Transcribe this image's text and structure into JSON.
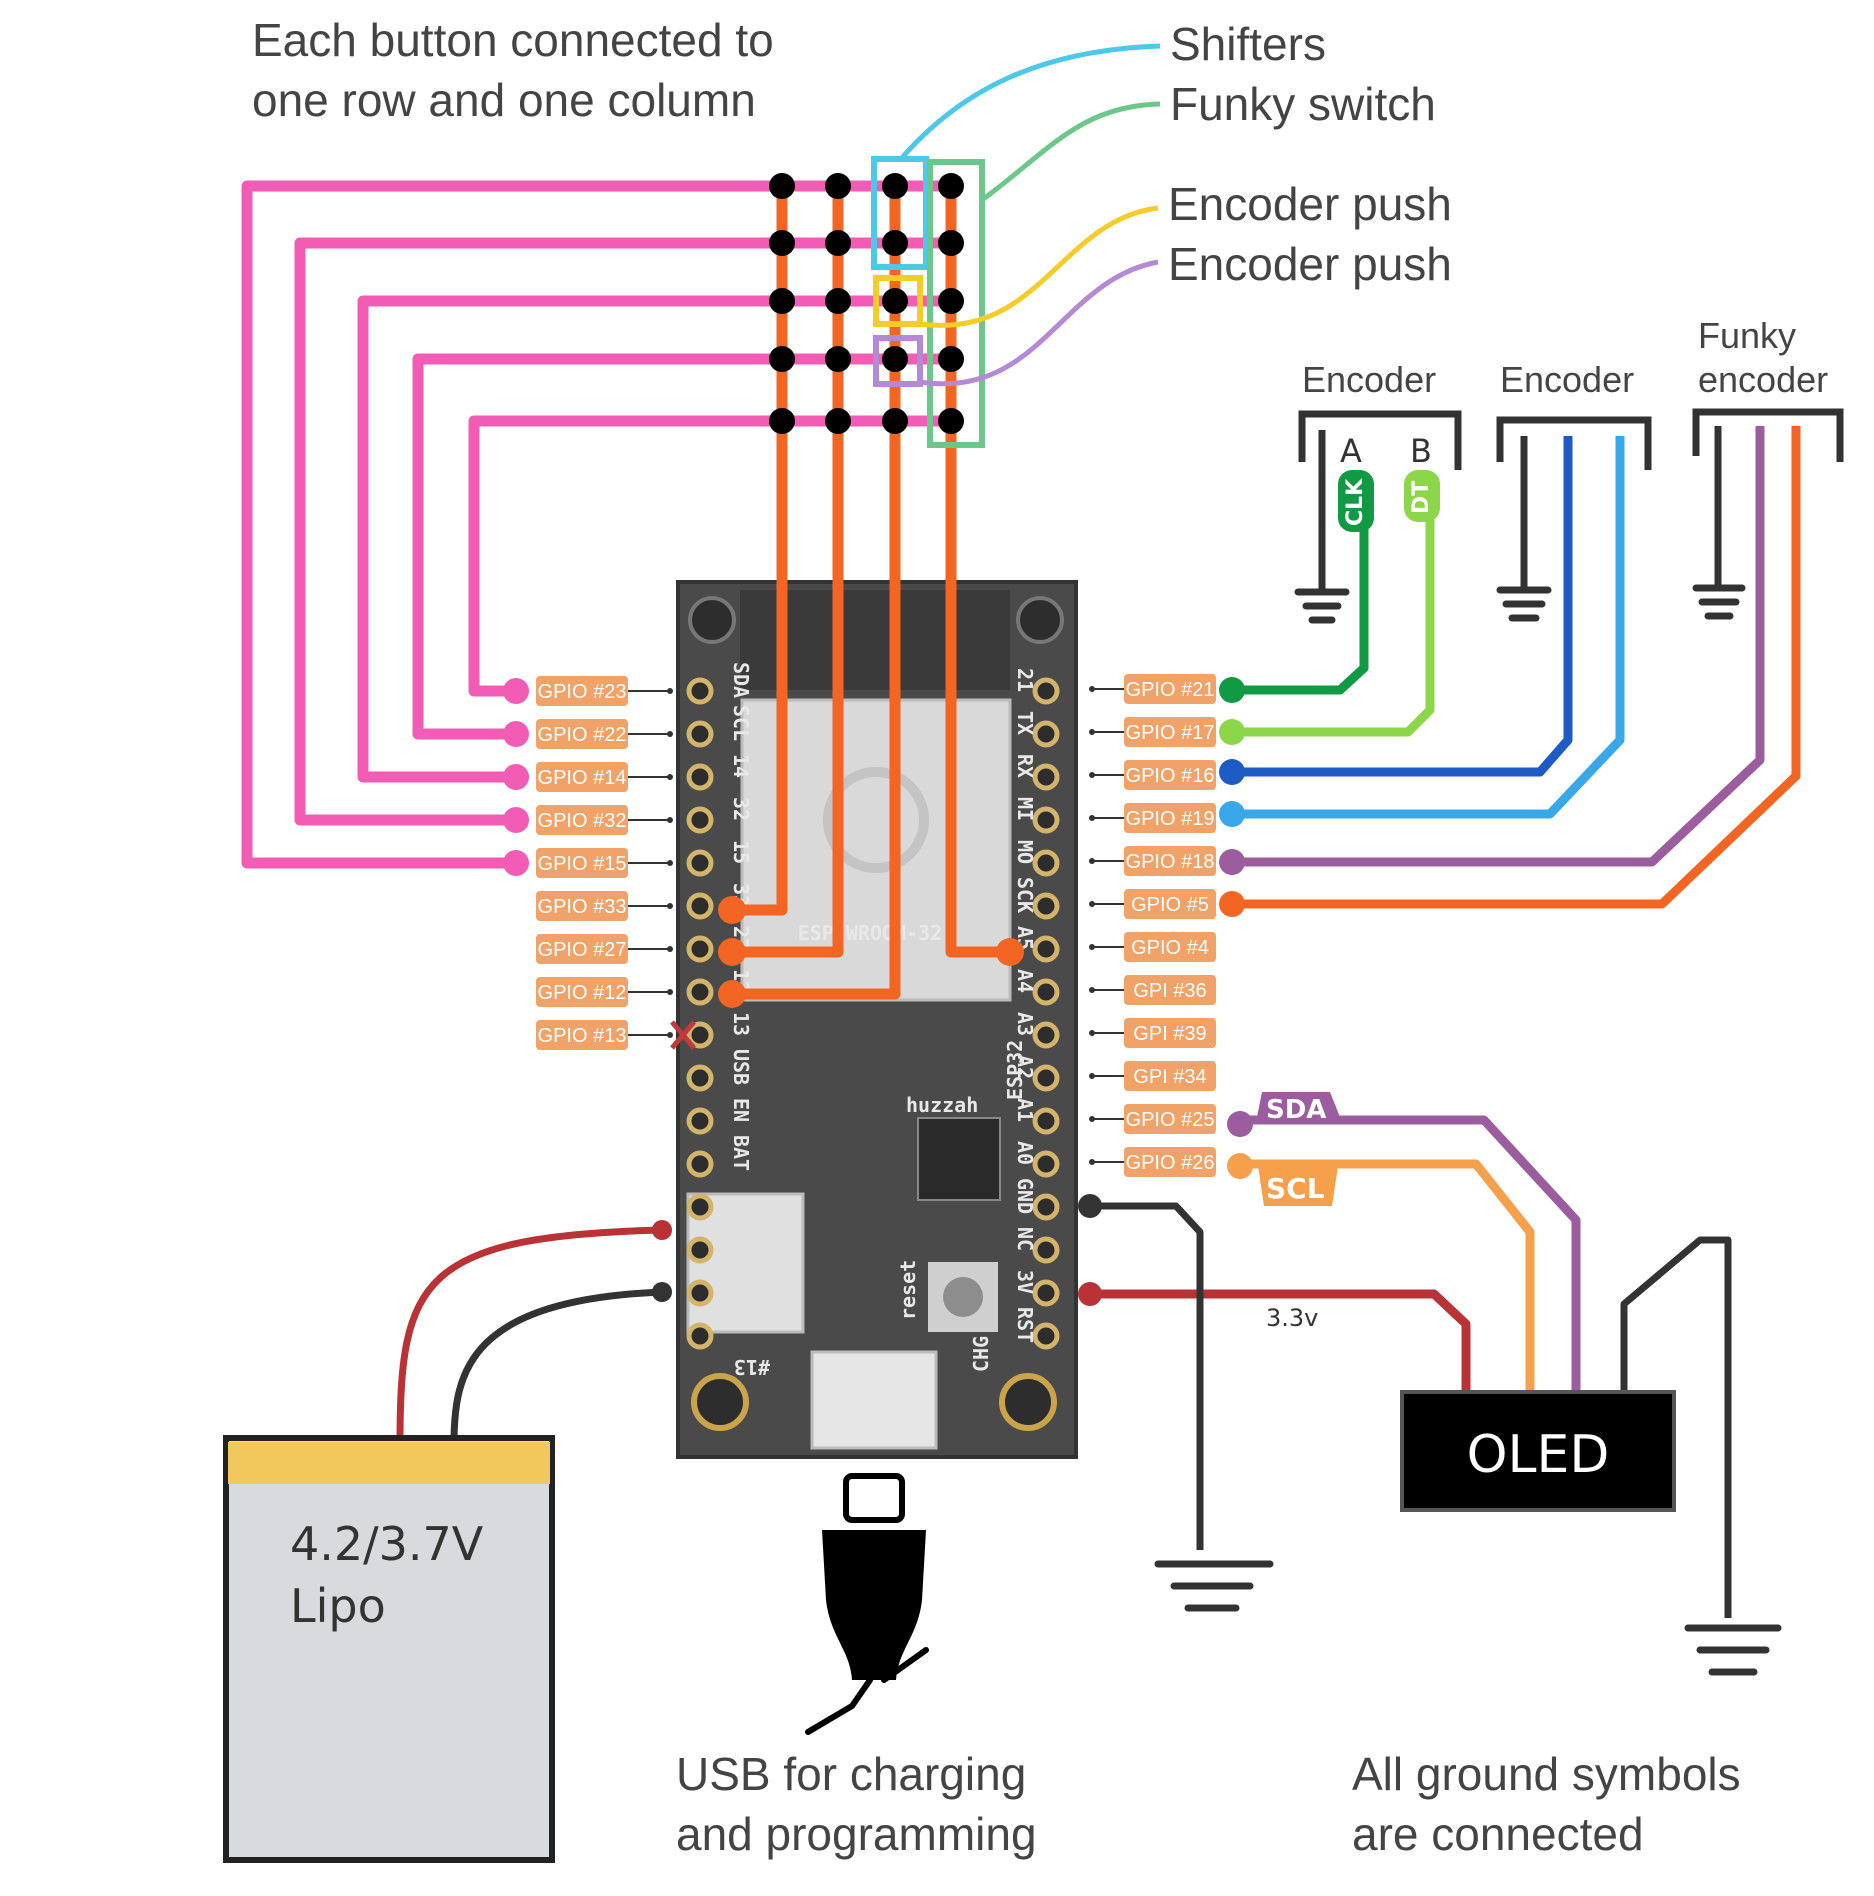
{
  "notes": {
    "matrix": [
      "Each button connected to",
      "one row and one column"
    ],
    "usb": [
      "USB for charging",
      "and programming"
    ],
    "ground": [
      "All ground symbols",
      "are connected"
    ]
  },
  "callouts": {
    "shifters": "Shifters",
    "funky_switch": "Funky switch",
    "encoder_push_1": "Encoder push",
    "encoder_push_2": "Encoder push"
  },
  "devices": {
    "encoder_1": {
      "title": "Encoder",
      "pin_a": "A",
      "pin_b": "B",
      "clk": "CLK",
      "dt": "DT"
    },
    "encoder_2": {
      "title": "Encoder"
    },
    "funky_encoder": {
      "title": [
        "Funky",
        "encoder"
      ]
    },
    "oled": {
      "label": "OLED",
      "sda": "SDA",
      "scl": "SCL",
      "vcc": "3.3v"
    },
    "battery": {
      "voltage": "4.2/3.7V",
      "type": "Lipo"
    }
  },
  "board": {
    "module": "ESP-WROOM-32",
    "name": "ESP32",
    "maker": "huzzah",
    "reset": "reset",
    "chg": "CHG",
    "led": "#13",
    "left_silk": [
      "SDA",
      "SCL",
      "14",
      "32",
      "15",
      "33",
      "27",
      "12",
      "13",
      "USB",
      "EN",
      "BAT"
    ],
    "right_silk": [
      "21",
      "TX",
      "RX",
      "MI",
      "MO",
      "SCK",
      "A5",
      "A4",
      "A3",
      "A2",
      "A1",
      "A0",
      "GND",
      "NC",
      "3V",
      "RST"
    ],
    "left_pins": [
      "GPIO #23",
      "GPIO #22",
      "GPIO #14",
      "GPIO #32",
      "GPIO #15",
      "GPIO #33",
      "GPIO #27",
      "GPIO #12",
      "GPIO #13"
    ],
    "right_pins": [
      "GPIO #21",
      "GPIO #17",
      "GPIO #16",
      "GPIO #19",
      "GPIO #18",
      "GPIO #5",
      "GPIO #4",
      "GPI #36",
      "GPI #39",
      "GPI #34",
      "GPIO #25",
      "GPIO #26"
    ]
  },
  "colors": {
    "rows": "#f25cb5",
    "columns": "#f26522",
    "shifters": "#4cc8e8",
    "funky_switch": "#6cc78a",
    "encoder_push_1": "#f5cc2a",
    "encoder_push_2": "#b489d6",
    "clk": "#119944",
    "dt": "#8cd649",
    "enc2_a": "#1f5bc4",
    "enc2_b": "#38a8e8",
    "funky_a": "#9b5d9e",
    "funky_b": "#f26522",
    "sda": "#9b5d9e",
    "scl": "#f5a04a",
    "power": "#b83236",
    "ground": "#333333",
    "pin_label": "#f0a268",
    "battery_top": "#f2c75c",
    "battery_body": "#d8dadd"
  }
}
